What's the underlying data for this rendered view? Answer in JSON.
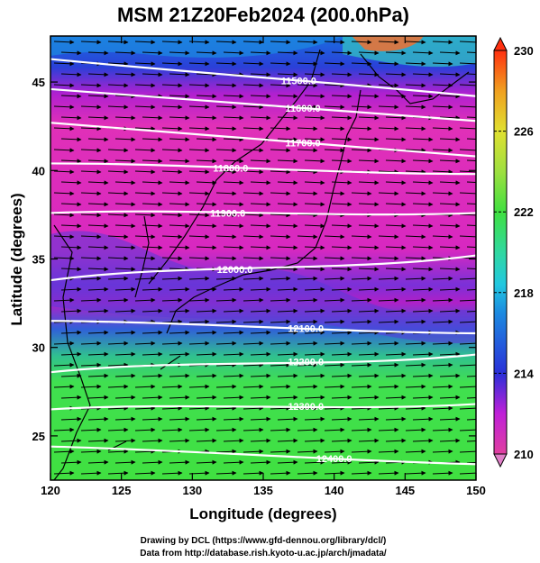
{
  "chart_data": {
    "type": "heatmap",
    "title": "MSM 21Z20Feb2024 (200.0hPa)",
    "xlabel": "Longitude (degrees)",
    "ylabel": "Latitude  (degrees)",
    "xlim": [
      120,
      150
    ],
    "ylim": [
      22.5,
      47.6
    ],
    "xticks": [
      120,
      125,
      130,
      135,
      140,
      145,
      150
    ],
    "yticks": [
      25,
      30,
      35,
      40,
      45
    ],
    "colorbar": {
      "min": 210,
      "max": 230,
      "ticks": [
        210,
        214,
        218,
        222,
        226,
        230
      ],
      "palette": [
        "#e040a0",
        "#d020d0",
        "#8a20d8",
        "#2a3ad8",
        "#1c7ae0",
        "#22b8e8",
        "#2ad0b0",
        "#40e060",
        "#40e040",
        "#9ee040",
        "#d8e630",
        "#f0c020",
        "#f08020",
        "#ff4010"
      ]
    },
    "series": [
      {
        "kind": "temperature_K",
        "lat": [
          47,
          45,
          43,
          41,
          39,
          37,
          35,
          33,
          31,
          29,
          27,
          25,
          23
        ],
        "values": [
          215,
          215,
          211,
          211,
          211,
          212,
          213,
          215,
          221,
          222,
          222,
          222,
          222
        ]
      }
    ],
    "contours": [
      {
        "label": "11500.0",
        "lat_left": 46.3,
        "lat_right": 44.2,
        "label_lon": 137.5
      },
      {
        "label": "11600.0",
        "lat_left": 44.6,
        "lat_right": 42.8,
        "label_lon": 137.8
      },
      {
        "label": "11700.0",
        "lat_left": 42.7,
        "lat_right": 40.8,
        "label_lon": 137.8
      },
      {
        "label": "11800.0",
        "lat_left": 40.4,
        "lat_right": 39.8,
        "label_lon": 132.7
      },
      {
        "label": "11900.0",
        "lat_left": 37.6,
        "lat_right": 37.6,
        "label_lon": 132.5
      },
      {
        "label": "12000.0",
        "lat_left": 33.8,
        "lat_right": 35.2,
        "label_lon": 133.0
      },
      {
        "label": "12100.0",
        "lat_left": 31.5,
        "lat_right": 30.8,
        "label_lon": 138.0
      },
      {
        "label": "12200.0",
        "lat_left": 28.6,
        "lat_right": 29.6,
        "label_lon": 138.0
      },
      {
        "label": "12300.0",
        "lat_left": 26.5,
        "lat_right": 26.8,
        "label_lon": 138.0
      },
      {
        "label": "12400.0",
        "lat_left": 24.4,
        "lat_right": 23.4,
        "label_lon": 140.0
      }
    ],
    "wind_vectors": "uniform westerly arrows",
    "grid": false,
    "legend": "colorbar-right"
  },
  "credits": {
    "line1": "Drawing by DCL (https://www.gfd-dennou.org/library/dcl/)",
    "line2": "Data from http://database.rish.kyoto-u.ac.jp/arch/jmadata/"
  }
}
